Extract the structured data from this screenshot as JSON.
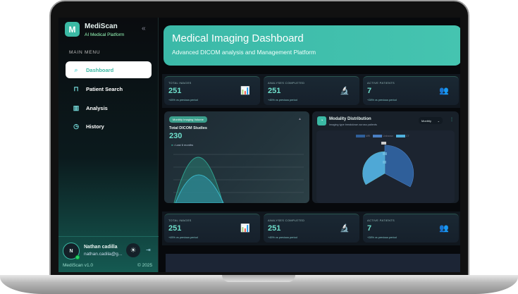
{
  "sidebar": {
    "logo_letter": "M",
    "brand": "MediScan",
    "tagline": "AI Medical Platform",
    "menu_heading": "MAIN MENU",
    "items": [
      {
        "label": "Dashboard",
        "icon": "search-icon",
        "active": true
      },
      {
        "label": "Patient Search",
        "icon": "lock-icon"
      },
      {
        "label": "Analysis",
        "icon": "bar-chart-icon"
      },
      {
        "label": "History",
        "icon": "clock-icon"
      }
    ],
    "user": {
      "initial": "N",
      "name": "Nathan cadilla",
      "email": "nathan.cadila@g..."
    },
    "version": "MediScan v1.0",
    "copyright": "© 2025"
  },
  "header": {
    "title": "Medical Imaging Dashboard",
    "subtitle": "Advanced DICOM analysis and Management Platform"
  },
  "stats": [
    {
      "label": "TOTAL IMAGES",
      "value": "251",
      "change": "+45% vs previous period",
      "icon": "bar-chart-icon"
    },
    {
      "label": "ANALYSES COMPLETED",
      "value": "251",
      "change": "+45% vs previous period",
      "icon": "microscope-icon"
    },
    {
      "label": "ACTIVE PATIENTS",
      "value": "7",
      "change": "+28% vs previous period",
      "icon": "users-icon"
    }
  ],
  "volume": {
    "chip": "Monthly Imaging Volume",
    "title": "Total DICOM Studies",
    "value": "230",
    "legend": "Last 6 months"
  },
  "modality": {
    "title": "Modality Distribution",
    "subtitle": "Imaging type breakdown across patients",
    "period": "Monthly",
    "chart_data": {
      "type": "polarArea",
      "categories": [
        "MRI",
        "Unknown",
        "CT"
      ],
      "colors": [
        "#2f5f9a",
        "#4a7fc4",
        "#4fb0dd"
      ]
    }
  },
  "colors": {
    "accent": "#3bb9a4"
  }
}
